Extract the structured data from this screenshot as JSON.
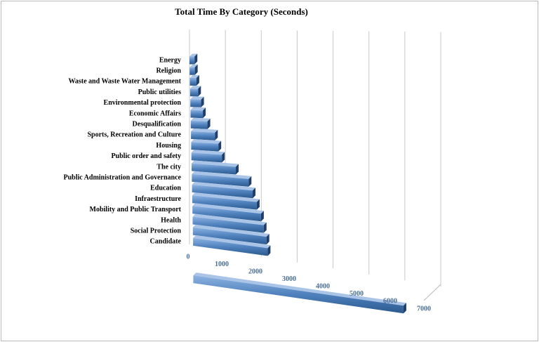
{
  "chart_data": {
    "type": "bar3d",
    "orientation": "horizontal",
    "title": "Total Time By Category (Seconds)",
    "categories": [
      "Energy",
      "Religion",
      "Waste and Waste Water Management",
      "Public utilities",
      "Environmental protection",
      "Economic Affairs",
      "Desqualification",
      "Sports,  Recreation and Culture",
      "Housing",
      "Public order and safety",
      "The city",
      "Public Administration and Governance",
      "Education",
      "Infraestructure",
      "Mobility and Public Transport",
      "Health",
      "Social Protection",
      "Candidate",
      null
    ],
    "values": [
      200,
      200,
      250,
      300,
      400,
      450,
      600,
      850,
      950,
      1050,
      1500,
      1900,
      2000,
      2100,
      2200,
      2250,
      2300,
      2300,
      6400
    ],
    "color": "#4f81bd",
    "xlim": [
      0,
      7000
    ],
    "xticks": [
      0,
      1000,
      2000,
      3000,
      4000,
      5000,
      6000,
      7000
    ],
    "grid": true
  }
}
